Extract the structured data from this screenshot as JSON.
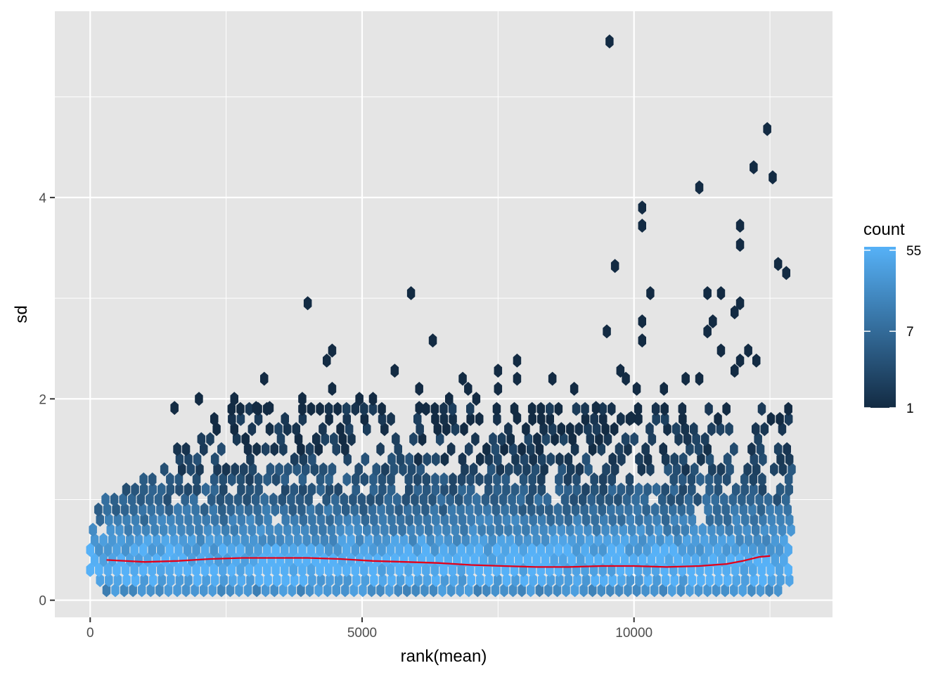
{
  "chart_data": {
    "type": "hexbin",
    "xlabel": "rank(mean)",
    "ylabel": "sd",
    "xlim": [
      -650,
      13650
    ],
    "ylim": [
      -0.17,
      5.85
    ],
    "x_ticks": [
      0,
      5000,
      10000
    ],
    "x_tick_labels": [
      "0",
      "5000",
      "10000"
    ],
    "y_ticks": [
      0,
      2,
      4
    ],
    "y_tick_labels": [
      "0",
      "2",
      "4"
    ],
    "grid": true,
    "background": "#e5e5e5",
    "fill_scale": {
      "name": "count",
      "trans": "log",
      "low_color": "#132b43",
      "high_color": "#56b1f7",
      "breaks": [
        55,
        7,
        1
      ],
      "break_labels": [
        "55",
        "7",
        "1"
      ],
      "min": 1,
      "max": 60
    },
    "n_points": 13000,
    "bands": [
      {
        "sd": 0.1,
        "level": 0.75,
        "x_from": 300,
        "x_to": 12800
      },
      {
        "sd": 0.2,
        "level": 0.93,
        "x_from": 100,
        "x_to": 12900
      },
      {
        "sd": 0.3,
        "level": 0.99,
        "x_from": 0,
        "x_to": 12900
      },
      {
        "sd": 0.4,
        "level": 0.98,
        "x_from": 0,
        "x_to": 12900
      },
      {
        "sd": 0.5,
        "level": 0.9,
        "x_from": 0,
        "x_to": 12900
      },
      {
        "sd": 0.6,
        "level": 0.8,
        "x_from": 0,
        "x_to": 12900
      },
      {
        "sd": 0.7,
        "level": 0.68,
        "x_from": 50,
        "x_to": 12900
      },
      {
        "sd": 0.8,
        "level": 0.58,
        "x_from": 100,
        "x_to": 12900
      },
      {
        "sd": 0.9,
        "level": 0.48,
        "x_from": 150,
        "x_to": 12900
      },
      {
        "sd": 1.0,
        "level": 0.4,
        "x_from": 200,
        "x_to": 12900
      },
      {
        "sd": 1.1,
        "level": 0.33,
        "x_from": 500,
        "x_to": 12900
      },
      {
        "sd": 1.2,
        "level": 0.27,
        "x_from": 900,
        "x_to": 12900
      },
      {
        "sd": 1.3,
        "level": 0.21,
        "x_from": 1200,
        "x_to": 12900
      },
      {
        "sd": 1.4,
        "level": 0.16,
        "x_from": 1400,
        "x_to": 12900
      },
      {
        "sd": 1.5,
        "level": 0.12,
        "x_from": 1600,
        "x_to": 12900
      },
      {
        "sd": 1.6,
        "level": 0.08,
        "x_from": 1800,
        "x_to": 12900
      },
      {
        "sd": 1.7,
        "level": 0.05,
        "x_from": 2000,
        "x_to": 12900
      },
      {
        "sd": 1.8,
        "level": 0.03,
        "x_from": 2200,
        "x_to": 12900
      },
      {
        "sd": 1.9,
        "level": 0.02,
        "x_from": 2600,
        "x_to": 12900
      }
    ],
    "band_gaps": [
      [
        1,
        5,
        0.94
      ],
      [
        12,
        5,
        0.9
      ],
      [
        21,
        6,
        0.91
      ],
      [
        25,
        4,
        0.93
      ],
      [
        31,
        8,
        0.9
      ],
      [
        35,
        6,
        0.92
      ],
      [
        38,
        9,
        0.95
      ],
      [
        44,
        8,
        0.9
      ],
      [
        52,
        9,
        0.9
      ],
      [
        59,
        7,
        0.92
      ],
      [
        63,
        8,
        0.93
      ],
      [
        69,
        7,
        0.92
      ],
      [
        73,
        9,
        0.94
      ],
      [
        80,
        9,
        0.9
      ],
      [
        3,
        7,
        0.95
      ],
      [
        15,
        9,
        0.94
      ],
      [
        28,
        9,
        0.93
      ],
      [
        48,
        9,
        0.94
      ],
      [
        66,
        9,
        0.95
      ],
      [
        77,
        9,
        0.95
      ]
    ],
    "outliers": [
      [
        9550,
        5.55
      ],
      [
        12450,
        4.68
      ],
      [
        12200,
        4.3
      ],
      [
        12550,
        4.2
      ],
      [
        11200,
        4.1
      ],
      [
        10150,
        3.9
      ],
      [
        10150,
        3.72
      ],
      [
        11950,
        3.72
      ],
      [
        11950,
        3.53
      ],
      [
        9650,
        3.32
      ],
      [
        12650,
        3.34
      ],
      [
        12800,
        3.25
      ],
      [
        10300,
        3.05
      ],
      [
        11350,
        3.05
      ],
      [
        11600,
        3.05
      ],
      [
        5900,
        3.05
      ],
      [
        4000,
        2.95
      ],
      [
        11950,
        2.95
      ],
      [
        11850,
        2.86
      ],
      [
        11450,
        2.77
      ],
      [
        10150,
        2.77
      ],
      [
        9500,
        2.67
      ],
      [
        11350,
        2.67
      ],
      [
        10150,
        2.58
      ],
      [
        6300,
        2.58
      ],
      [
        11600,
        2.48
      ],
      [
        4450,
        2.48
      ],
      [
        12100,
        2.48
      ],
      [
        4350,
        2.38
      ],
      [
        7850,
        2.38
      ],
      [
        12250,
        2.38
      ],
      [
        11950,
        2.38
      ],
      [
        7500,
        2.28
      ],
      [
        9750,
        2.28
      ],
      [
        5600,
        2.28
      ],
      [
        11850,
        2.28
      ],
      [
        3200,
        2.2
      ],
      [
        6850,
        2.2
      ],
      [
        7850,
        2.2
      ],
      [
        8500,
        2.2
      ],
      [
        9850,
        2.2
      ],
      [
        10950,
        2.2
      ],
      [
        11200,
        2.2
      ],
      [
        6950,
        2.1
      ],
      [
        7500,
        2.1
      ],
      [
        8900,
        2.1
      ],
      [
        10050,
        2.1
      ],
      [
        10550,
        2.1
      ],
      [
        4450,
        2.1
      ],
      [
        6050,
        2.1
      ],
      [
        2000,
        2.0
      ],
      [
        2650,
        2.0
      ],
      [
        3900,
        2.0
      ],
      [
        4950,
        2.0
      ],
      [
        5200,
        2.0
      ],
      [
        6600,
        2.0
      ],
      [
        7100,
        2.0
      ],
      [
        9300,
        1.91
      ],
      [
        1550,
        1.91
      ],
      [
        3050,
        1.91
      ],
      [
        3300,
        1.91
      ],
      [
        6050,
        1.91
      ],
      [
        9950,
        1.81
      ],
      [
        7850,
        1.81
      ]
    ],
    "isolated_holes": [
      [
        2450,
        0.95
      ],
      [
        2450,
        1.05
      ],
      [
        3150,
        1.2
      ],
      [
        4800,
        1.05
      ],
      [
        7150,
        0.95
      ],
      [
        7750,
        1.12
      ],
      [
        8150,
        1.0
      ],
      [
        9750,
        1.02
      ],
      [
        10250,
        1.02
      ],
      [
        10500,
        1.12
      ],
      [
        11250,
        1.12
      ],
      [
        5000,
        1.3
      ],
      [
        6200,
        1.2
      ],
      [
        6450,
        1.05
      ],
      [
        8700,
        0.78
      ],
      [
        7950,
        0.85
      ],
      [
        10800,
        1.3
      ],
      [
        11550,
        1.05
      ],
      [
        3550,
        0.9
      ],
      [
        5900,
        1.1
      ]
    ],
    "trend": {
      "x": [
        300,
        1000,
        1600,
        2200,
        2800,
        3400,
        4000,
        4600,
        5200,
        5800,
        6400,
        7000,
        7600,
        8200,
        8800,
        9400,
        10000,
        10600,
        11200,
        11700,
        12000,
        12300,
        12500
      ],
      "y": [
        0.4,
        0.38,
        0.39,
        0.41,
        0.42,
        0.42,
        0.42,
        0.41,
        0.39,
        0.38,
        0.37,
        0.35,
        0.34,
        0.33,
        0.33,
        0.34,
        0.34,
        0.33,
        0.34,
        0.36,
        0.39,
        0.43,
        0.44
      ],
      "color": "#e3001a"
    }
  }
}
